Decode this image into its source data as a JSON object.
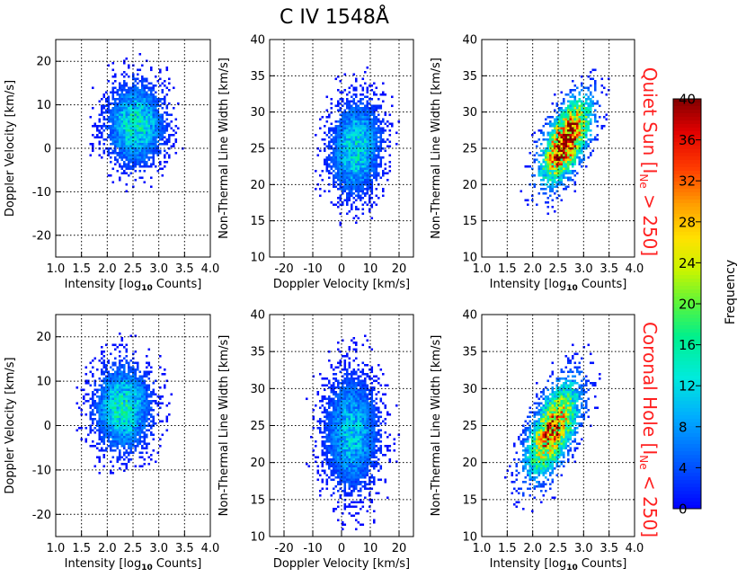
{
  "title": "C IV 1548Å",
  "row_labels": {
    "quiet_sun": {
      "prefix": "Quiet Sun [I",
      "sub": "Ne",
      "suffix": " > 250]",
      "color": "#ff2020"
    },
    "coronal_hole": {
      "prefix": "Coronal Hole [I",
      "sub": "Ne",
      "suffix": " < 250]",
      "color": "#ff2020"
    }
  },
  "colorbar": {
    "label": "Frequency",
    "range": [
      0,
      40
    ],
    "tick_labels": [
      "0",
      "4",
      "8",
      "12",
      "16",
      "20",
      "24",
      "28",
      "32",
      "36",
      "40"
    ]
  },
  "axis_text": {
    "intensity_prefix": "Intensity [log",
    "intensity_sub": "10",
    "intensity_suffix": " Counts]",
    "doppler_xlabel": "Doppler Velocity [km/s]",
    "doppler_ylabel": "Doppler Velocity [km/s]",
    "ntw_ylabel": "Non-Thermal Line Width [km/s]"
  },
  "chart_data": [
    {
      "id": "qs-int-vel",
      "type": "heatmap",
      "row": "Quiet Sun",
      "x_quantity": "Intensity [log10 Counts]",
      "y_quantity": "Doppler Velocity [km/s]",
      "xlim": [
        1.0,
        4.0
      ],
      "ylim": [
        -25,
        25
      ],
      "x_ticks": [
        "1.0",
        "1.5",
        "2.0",
        "2.5",
        "3.0",
        "3.5",
        "4.0"
      ],
      "y_ticks": [
        "-20",
        "-10",
        "0",
        "10",
        "20"
      ],
      "distribution": {
        "x_center": 2.55,
        "x_sd": 0.33,
        "y_center": 5.5,
        "y_sd": 5.6,
        "correlation": 0.0,
        "peak_frequency": 14
      },
      "grid": true
    },
    {
      "id": "qs-vel-ntw",
      "type": "heatmap",
      "row": "Quiet Sun",
      "x_quantity": "Doppler Velocity [km/s]",
      "y_quantity": "Non-Thermal Line Width [km/s]",
      "xlim": [
        -25,
        25
      ],
      "ylim": [
        10,
        40
      ],
      "x_ticks": [
        "-20",
        "-10",
        "0",
        "10",
        "20"
      ],
      "y_ticks": [
        "10",
        "15",
        "20",
        "25",
        "30",
        "35",
        "40"
      ],
      "distribution": {
        "x_center": 5.0,
        "x_sd": 5.2,
        "y_center": 25.0,
        "y_sd": 3.9,
        "correlation": 0.1,
        "peak_frequency": 13
      },
      "grid": true
    },
    {
      "id": "qs-int-ntw",
      "type": "heatmap",
      "row": "Quiet Sun",
      "x_quantity": "Intensity [log10 Counts]",
      "y_quantity": "Non-Thermal Line Width [km/s]",
      "xlim": [
        1.0,
        4.0
      ],
      "ylim": [
        10,
        40
      ],
      "x_ticks": [
        "1.0",
        "1.5",
        "2.0",
        "2.5",
        "3.0",
        "3.5",
        "4.0"
      ],
      "y_ticks": [
        "10",
        "15",
        "20",
        "25",
        "30",
        "35",
        "40"
      ],
      "distribution": {
        "x_center": 2.65,
        "x_sd": 0.3,
        "y_center": 26.0,
        "y_sd": 3.6,
        "correlation": 0.6,
        "peak_frequency": 40
      },
      "grid": true
    },
    {
      "id": "ch-int-vel",
      "type": "heatmap",
      "row": "Coronal Hole",
      "x_quantity": "Intensity [log10 Counts]",
      "y_quantity": "Doppler Velocity [km/s]",
      "xlim": [
        1.0,
        4.0
      ],
      "ylim": [
        -25,
        25
      ],
      "x_ticks": [
        "1.0",
        "1.5",
        "2.0",
        "2.5",
        "3.0",
        "3.5",
        "4.0"
      ],
      "y_ticks": [
        "-20",
        "-10",
        "0",
        "10",
        "20"
      ],
      "distribution": {
        "x_center": 2.3,
        "x_sd": 0.33,
        "y_center": 4.0,
        "y_sd": 5.8,
        "correlation": 0.0,
        "peak_frequency": 14
      },
      "grid": true
    },
    {
      "id": "ch-vel-ntw",
      "type": "heatmap",
      "row": "Coronal Hole",
      "x_quantity": "Doppler Velocity [km/s]",
      "y_quantity": "Non-Thermal Line Width [km/s]",
      "xlim": [
        -25,
        25
      ],
      "ylim": [
        10,
        40
      ],
      "x_ticks": [
        "-20",
        "-10",
        "0",
        "10",
        "20"
      ],
      "y_ticks": [
        "10",
        "15",
        "20",
        "25",
        "30",
        "35",
        "40"
      ],
      "distribution": {
        "x_center": 3.5,
        "x_sd": 5.6,
        "y_center": 24.0,
        "y_sd": 4.6,
        "correlation": 0.0,
        "peak_frequency": 11
      },
      "grid": true
    },
    {
      "id": "ch-int-ntw",
      "type": "heatmap",
      "row": "Coronal Hole",
      "x_quantity": "Intensity [log10 Counts]",
      "y_quantity": "Non-Thermal Line Width [km/s]",
      "xlim": [
        1.0,
        4.0
      ],
      "ylim": [
        10,
        40
      ],
      "x_ticks": [
        "1.0",
        "1.5",
        "2.0",
        "2.5",
        "3.0",
        "3.5",
        "4.0"
      ],
      "y_ticks": [
        "10",
        "15",
        "20",
        "25",
        "30",
        "35",
        "40"
      ],
      "distribution": {
        "x_center": 2.4,
        "x_sd": 0.32,
        "y_center": 24.5,
        "y_sd": 4.0,
        "correlation": 0.6,
        "peak_frequency": 32
      },
      "grid": true
    }
  ]
}
